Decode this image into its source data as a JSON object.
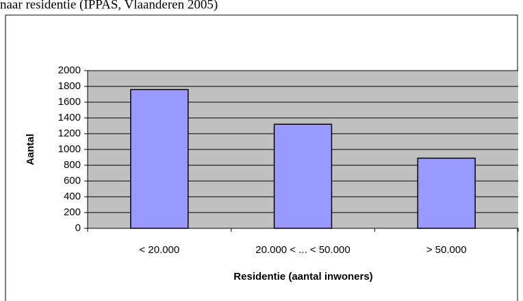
{
  "caption": "naar residentie (IPPAS, Vlaanderen 2005)",
  "chart_data": {
    "type": "bar",
    "categories": [
      "< 20.000",
      "20.000 < ... < 50.000",
      "> 50.000"
    ],
    "values": [
      1760,
      1320,
      890
    ],
    "color": "#9999ff",
    "xlabel": "Residentie (aantal inwoners)",
    "ylabel": "Aantal",
    "ylim": [
      0,
      2000
    ],
    "yticks": [
      0,
      200,
      400,
      600,
      800,
      1000,
      1200,
      1400,
      1600,
      1800,
      2000
    ],
    "grid": true
  }
}
